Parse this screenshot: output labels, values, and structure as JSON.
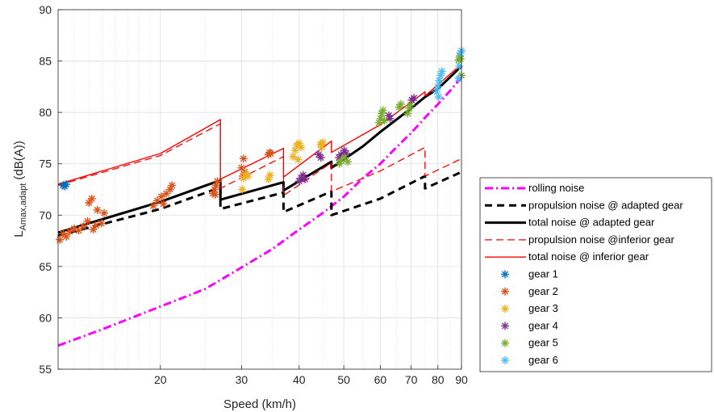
{
  "chart_data": {
    "type": "line",
    "title": "",
    "xlabel": "Speed (km/h)",
    "ylabel": {
      "main": "L",
      "sub": "Amax,adapt",
      "unit": " (dB(A))"
    },
    "x_scale": "log",
    "xlim": [
      12,
      90
    ],
    "ylim": [
      55,
      90
    ],
    "xticks": [
      20,
      30,
      40,
      50,
      60,
      70,
      80,
      90
    ],
    "yticks": [
      55,
      60,
      65,
      70,
      75,
      80,
      85,
      90
    ],
    "grid": "on (with minor gridlines on x)",
    "legend_position": "outside-right",
    "series": [
      {
        "name": "rolling noise",
        "style": "dash-dot",
        "color": "#ff00ff",
        "points": [
          [
            12,
            57.3
          ],
          [
            15,
            58.9
          ],
          [
            20,
            61.1
          ],
          [
            25,
            62.8
          ],
          [
            30,
            64.9
          ],
          [
            35,
            66.7
          ],
          [
            40,
            68.6
          ],
          [
            45,
            70.2
          ],
          [
            50,
            71.8
          ],
          [
            55,
            73.6
          ],
          [
            60,
            75.0
          ],
          [
            65,
            76.6
          ],
          [
            70,
            78.0
          ],
          [
            75,
            79.5
          ],
          [
            80,
            80.8
          ],
          [
            85,
            82.1
          ],
          [
            90,
            83.4
          ]
        ]
      },
      {
        "name": "propulsion noise @ adapted gear",
        "style": "dashed",
        "color": "#000000",
        "points": [
          [
            12,
            68.0
          ],
          [
            20,
            70.6
          ],
          [
            27,
            72.7
          ],
          [
            27,
            70.6
          ],
          [
            37,
            72.2
          ],
          [
            37,
            70.3
          ],
          [
            47,
            72.3
          ],
          [
            47,
            70.0
          ],
          [
            60,
            71.6
          ],
          [
            75,
            73.8
          ],
          [
            75,
            72.6
          ],
          [
            90,
            74.2
          ]
        ]
      },
      {
        "name": "total noise @ adapted gear",
        "style": "solid-thick",
        "color": "#000000",
        "points": [
          [
            12,
            68.3
          ],
          [
            20,
            71.3
          ],
          [
            27,
            73.4
          ],
          [
            27,
            71.5
          ],
          [
            37,
            73.2
          ],
          [
            37,
            72.4
          ],
          [
            47,
            75.2
          ],
          [
            47,
            74.6
          ],
          [
            55,
            76.7
          ],
          [
            60,
            78.1
          ],
          [
            70,
            80.4
          ],
          [
            75,
            81.5
          ],
          [
            80,
            82.3
          ],
          [
            90,
            84.5
          ]
        ]
      },
      {
        "name": "propulsion noise @inferior gear",
        "style": "dashed-thin",
        "color": "#ff0000",
        "points": [
          [
            12,
            72.9
          ],
          [
            20,
            75.8
          ],
          [
            27,
            78.9
          ],
          [
            27,
            72.6
          ],
          [
            37,
            75.7
          ],
          [
            37,
            71.9
          ],
          [
            47,
            75.1
          ],
          [
            47,
            72.3
          ],
          [
            60,
            74.3
          ],
          [
            75,
            76.6
          ],
          [
            75,
            73.8
          ],
          [
            90,
            75.5
          ]
        ]
      },
      {
        "name": "total noise @ inferior gear",
        "style": "solid-thin",
        "color": "#ff0000",
        "points": [
          [
            12,
            73.0
          ],
          [
            20,
            76.0
          ],
          [
            27,
            79.3
          ],
          [
            27,
            73.5
          ],
          [
            37,
            76.5
          ],
          [
            37,
            73.7
          ],
          [
            47,
            77.2
          ],
          [
            47,
            76.1
          ],
          [
            60,
            78.8
          ],
          [
            75,
            82.0
          ],
          [
            75,
            81.6
          ],
          [
            90,
            84.7
          ]
        ]
      }
    ],
    "scatter_series": [
      {
        "name": "gear 1",
        "color": "#0072bd",
        "points": [
          [
            12.3,
            72.9
          ],
          [
            12.4,
            72.8
          ],
          [
            12.5,
            73.0
          ]
        ]
      },
      {
        "name": "gear 2",
        "color": "#d95319",
        "points": [
          [
            12.1,
            67.6
          ],
          [
            12.3,
            68.2
          ],
          [
            12.5,
            67.9
          ],
          [
            12.7,
            68.4
          ],
          [
            13.0,
            68.7
          ],
          [
            13.3,
            68.5
          ],
          [
            13.6,
            68.9
          ],
          [
            13.9,
            69.4
          ],
          [
            14.0,
            71.2
          ],
          [
            14.2,
            71.6
          ],
          [
            14.3,
            68.6
          ],
          [
            14.5,
            69.0
          ],
          [
            14.6,
            70.5
          ],
          [
            14.9,
            69.2
          ],
          [
            15.1,
            70.2
          ],
          [
            19.3,
            70.9
          ],
          [
            19.7,
            71.4
          ],
          [
            20.1,
            71.8
          ],
          [
            20.3,
            71.1
          ],
          [
            20.6,
            72.1
          ],
          [
            21.0,
            72.5
          ],
          [
            21.2,
            72.9
          ],
          [
            26.0,
            72.1
          ],
          [
            26.2,
            72.5
          ],
          [
            26.4,
            72.9
          ],
          [
            26.6,
            73.3
          ],
          [
            26.3,
            72.0
          ],
          [
            30.0,
            74.6
          ],
          [
            30.3,
            75.5
          ],
          [
            30.5,
            74.2
          ],
          [
            30.2,
            73.8
          ],
          [
            34.3,
            75.9
          ],
          [
            34.5,
            76.1
          ],
          [
            34.7,
            76.0
          ]
        ]
      },
      {
        "name": "gear 3",
        "color": "#edb120",
        "points": [
          [
            30.1,
            72.5
          ],
          [
            30.3,
            73.6
          ],
          [
            30.6,
            74.0
          ],
          [
            31.0,
            73.8
          ],
          [
            34.3,
            73.5
          ],
          [
            34.6,
            73.9
          ],
          [
            38.8,
            75.7
          ],
          [
            39.2,
            76.3
          ],
          [
            39.5,
            76.8
          ],
          [
            40.0,
            77.0
          ],
          [
            40.4,
            76.6
          ],
          [
            39.8,
            75.4
          ],
          [
            44.5,
            76.9
          ],
          [
            45.0,
            77.1
          ],
          [
            44.8,
            76.6
          ]
        ]
      },
      {
        "name": "gear 4",
        "color": "#7e2f8e",
        "points": [
          [
            40.0,
            73.3
          ],
          [
            40.4,
            73.6
          ],
          [
            40.8,
            73.9
          ],
          [
            41.2,
            73.5
          ],
          [
            44.1,
            75.9
          ],
          [
            44.6,
            75.6
          ],
          [
            48.8,
            75.6
          ],
          [
            49.3,
            75.9
          ],
          [
            50.1,
            76.3
          ],
          [
            50.6,
            76.0
          ],
          [
            62.6,
            79.7
          ],
          [
            63.0,
            79.4
          ],
          [
            70.2,
            81.2
          ],
          [
            71.0,
            81.4
          ]
        ]
      },
      {
        "name": "gear 5",
        "color": "#77ac30",
        "points": [
          [
            48.9,
            75.0
          ],
          [
            49.4,
            75.3
          ],
          [
            50.2,
            75.6
          ],
          [
            51.0,
            75.2
          ],
          [
            59.6,
            79.0
          ],
          [
            60.1,
            79.4
          ],
          [
            60.4,
            79.9
          ],
          [
            60.8,
            80.2
          ],
          [
            61.2,
            79.2
          ],
          [
            65.9,
            80.5
          ],
          [
            66.5,
            80.8
          ],
          [
            68.8,
            79.9
          ],
          [
            69.3,
            80.4
          ],
          [
            69.8,
            80.7
          ],
          [
            88.7,
            85.1
          ],
          [
            89.2,
            85.5
          ],
          [
            89.6,
            85.2
          ],
          [
            90.0,
            83.6
          ]
        ]
      },
      {
        "name": "gear 6",
        "color": "#4dbeee",
        "points": [
          [
            79.5,
            82.0
          ],
          [
            80.0,
            82.5
          ],
          [
            80.5,
            83.1
          ],
          [
            81.1,
            83.6
          ],
          [
            81.6,
            84.0
          ],
          [
            80.3,
            81.5
          ],
          [
            88.6,
            83.3
          ],
          [
            89.0,
            84.5
          ],
          [
            89.5,
            85.8
          ],
          [
            90.0,
            86.0
          ]
        ]
      }
    ]
  }
}
